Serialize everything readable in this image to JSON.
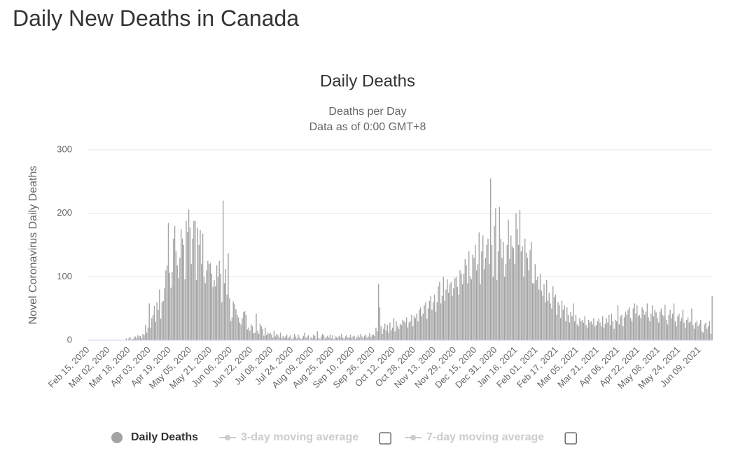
{
  "header": {
    "title": "Daily New Deaths in Canada"
  },
  "chart_data": {
    "type": "bar",
    "title": "Daily Deaths",
    "subtitle": [
      "Deaths per Day",
      "Data as of 0:00 GMT+8"
    ],
    "y_label": "Novel Coronavirus Daily Deaths",
    "ylim": [
      0,
      300
    ],
    "yticks": [
      0,
      100,
      200,
      300
    ],
    "grid": true,
    "categories": [
      "Feb 15, 2020",
      null,
      null,
      null,
      null,
      null,
      null,
      null,
      null,
      null,
      null,
      null,
      null,
      null,
      null,
      null,
      "Mar 02, 2020",
      null,
      null,
      null,
      null,
      null,
      null,
      null,
      null,
      null,
      null,
      null,
      null,
      null,
      null,
      null,
      "Mar 18, 2020",
      null,
      null,
      null,
      null,
      null,
      null,
      null,
      null,
      null,
      null,
      null,
      null,
      null,
      null,
      null,
      "Apr 03, 2020",
      null,
      null,
      null,
      null,
      null,
      null,
      null,
      null,
      null,
      null,
      null,
      null,
      null,
      null,
      null,
      "Apr 19, 2020",
      null,
      null,
      null,
      null,
      null,
      null,
      null,
      null,
      null,
      null,
      null,
      null,
      null,
      null,
      null,
      "May 05, 2020",
      null,
      null,
      null,
      null,
      null,
      null,
      null,
      null,
      null,
      null,
      null,
      null,
      null,
      null,
      null,
      "May 21, 2020",
      null,
      null,
      null,
      null,
      null,
      null,
      null,
      null,
      null,
      null,
      null,
      null,
      null,
      null,
      null,
      "Jun 06, 2020",
      null,
      null,
      null,
      null,
      null,
      null,
      null,
      null,
      null,
      null,
      null,
      null,
      null,
      null,
      null,
      "Jun 22, 2020",
      null,
      null,
      null,
      null,
      null,
      null,
      null,
      null,
      null,
      null,
      null,
      null,
      null,
      null,
      null,
      "Jul 08, 2020",
      null,
      null,
      null,
      null,
      null,
      null,
      null,
      null,
      null,
      null,
      null,
      null,
      null,
      null,
      null,
      "Jul 24, 2020",
      null,
      null,
      null,
      null,
      null,
      null,
      null,
      null,
      null,
      null,
      null,
      null,
      null,
      null,
      null,
      "Aug 09, 2020",
      null,
      null,
      null,
      null,
      null,
      null,
      null,
      null,
      null,
      null,
      null,
      null,
      null,
      null,
      null,
      "Aug 25, 2020",
      null,
      null,
      null,
      null,
      null,
      null,
      null,
      null,
      null,
      null,
      null,
      null,
      null,
      null,
      null,
      "Sep 10, 2020",
      null,
      null,
      null,
      null,
      null,
      null,
      null,
      null,
      null,
      null,
      null,
      null,
      null,
      null,
      null,
      "Sep 26, 2020",
      null,
      null,
      null,
      null,
      null,
      null,
      null,
      null,
      null,
      null,
      null,
      null,
      null,
      null,
      null,
      "Oct 12, 2020",
      null,
      null,
      null,
      null,
      null,
      null,
      null,
      null,
      null,
      null,
      null,
      null,
      null,
      null,
      null,
      "Oct 28, 2020",
      null,
      null,
      null,
      null,
      null,
      null,
      null,
      null,
      null,
      null,
      null,
      null,
      null,
      null,
      null,
      "Nov 13, 2020",
      null,
      null,
      null,
      null,
      null,
      null,
      null,
      null,
      null,
      null,
      null,
      null,
      null,
      null,
      null,
      "Nov 29, 2020",
      null,
      null,
      null,
      null,
      null,
      null,
      null,
      null,
      null,
      null,
      null,
      null,
      null,
      null,
      null,
      "Dec 15, 2020",
      null,
      null,
      null,
      null,
      null,
      null,
      null,
      null,
      null,
      null,
      null,
      null,
      null,
      null,
      null,
      "Dec 31, 2020",
      null,
      null,
      null,
      null,
      null,
      null,
      null,
      null,
      null,
      null,
      null,
      null,
      null,
      null,
      null,
      "Jan 16, 2021",
      null,
      null,
      null,
      null,
      null,
      null,
      null,
      null,
      null,
      null,
      null,
      null,
      null,
      null,
      null,
      "Feb 01, 2021",
      null,
      null,
      null,
      null,
      null,
      null,
      null,
      null,
      null,
      null,
      null,
      null,
      null,
      null,
      null,
      "Feb 17, 2021",
      null,
      null,
      null,
      null,
      null,
      null,
      null,
      null,
      null,
      null,
      null,
      null,
      null,
      null,
      null,
      "Mar 05, 2021",
      null,
      null,
      null,
      null,
      null,
      null,
      null,
      null,
      null,
      null,
      null,
      null,
      null,
      null,
      null,
      "Mar 21, 2021",
      null,
      null,
      null,
      null,
      null,
      null,
      null,
      null,
      null,
      null,
      null,
      null,
      null,
      null,
      null,
      "Apr 06, 2021",
      null,
      null,
      null,
      null,
      null,
      null,
      null,
      null,
      null,
      null,
      null,
      null,
      null,
      null,
      null,
      "Apr 22, 2021",
      null,
      null,
      null,
      null,
      null,
      null,
      null,
      null,
      null,
      null,
      null,
      null,
      null,
      null,
      null,
      "May 08, 2021",
      null,
      null,
      null,
      null,
      null,
      null,
      null,
      null,
      null,
      null,
      null,
      null,
      null,
      null,
      null,
      "May 24, 2021",
      null,
      null,
      null,
      null,
      null,
      null,
      null,
      null,
      null,
      null,
      null,
      null,
      null,
      null,
      null,
      "Jun 09, 2021",
      null,
      null,
      null,
      null,
      null,
      null,
      null,
      null,
      null,
      null
    ],
    "series": [
      {
        "name": "Daily Deaths",
        "color": "#a3a3a3",
        "values": [
          0,
          0,
          0,
          0,
          0,
          0,
          0,
          0,
          0,
          0,
          0,
          0,
          0,
          0,
          0,
          0,
          0,
          0,
          0,
          0,
          0,
          0,
          0,
          1,
          0,
          0,
          0,
          0,
          0,
          1,
          3,
          0,
          3,
          5,
          1,
          2,
          4,
          6,
          3,
          8,
          6,
          7,
          3,
          10,
          8,
          24,
          12,
          20,
          58,
          20,
          35,
          40,
          54,
          29,
          60,
          48,
          80,
          34,
          60,
          62,
          82,
          110,
          118,
          185,
          106,
          83,
          108,
          160,
          180,
          140,
          118,
          98,
          130,
          175,
          160,
          150,
          96,
          188,
          171,
          206,
          178,
          120,
          160,
          188,
          188,
          95,
          177,
          150,
          174,
          120,
          168,
          100,
          90,
          110,
          125,
          120,
          122,
          105,
          84,
          95,
          85,
          118,
          100,
          125,
          105,
          60,
          220,
          90,
          112,
          72,
          137,
          66,
          30,
          36,
          61,
          57,
          49,
          40,
          36,
          28,
          25,
          35,
          44,
          46,
          40,
          17,
          20,
          15,
          25,
          22,
          11,
          12,
          42,
          15,
          10,
          26,
          22,
          18,
          7,
          20,
          8,
          12,
          10,
          12,
          9,
          4,
          15,
          6,
          10,
          8,
          5,
          12,
          3,
          7,
          4,
          6,
          9,
          3,
          5,
          8,
          2,
          4,
          10,
          6,
          3,
          9,
          5,
          2,
          3,
          7,
          12,
          4,
          6,
          8,
          1,
          5,
          3,
          9,
          7,
          2,
          14,
          4,
          2,
          6,
          10,
          8,
          3,
          5,
          7,
          4,
          9,
          3,
          8,
          2,
          6,
          5,
          3,
          7,
          5,
          10,
          4,
          2,
          6,
          8,
          4,
          5,
          9,
          3,
          6,
          7,
          2,
          5,
          8,
          4,
          10,
          6,
          3,
          7,
          9,
          4,
          6,
          11,
          5,
          8,
          9,
          7,
          20,
          14,
          89,
          52,
          22,
          10,
          18,
          26,
          15,
          24,
          12,
          28,
          16,
          20,
          35,
          14,
          30,
          22,
          18,
          26,
          24,
          32,
          30,
          28,
          36,
          20,
          28,
          30,
          40,
          22,
          38,
          35,
          42,
          30,
          48,
          52,
          38,
          42,
          55,
          60,
          34,
          50,
          62,
          70,
          48,
          60,
          72,
          45,
          60,
          85,
          92,
          58,
          70,
          100,
          62,
          80,
          96,
          75,
          88,
          92,
          70,
          82,
          98,
          100,
          84,
          72,
          110,
          105,
          88,
          105,
          128,
          118,
          90,
          140,
          100,
          96,
          135,
          130,
          150,
          110,
          120,
          170,
          88,
          140,
          165,
          112,
          130,
          150,
          160,
          120,
          255,
          150,
          100,
          180,
          208,
          95,
          140,
          210,
          160,
          130,
          155,
          100,
          120,
          150,
          190,
          128,
          165,
          148,
          145,
          120,
          200,
          175,
          150,
          205,
          140,
          148,
          100,
          160,
          138,
          130,
          110,
          142,
          155,
          90,
          90,
          120,
          95,
          100,
          80,
          105,
          78,
          70,
          88,
          60,
          95,
          62,
          75,
          58,
          50,
          85,
          68,
          72,
          40,
          60,
          55,
          35,
          62,
          48,
          55,
          30,
          52,
          40,
          28,
          45,
          38,
          58,
          30,
          40,
          25,
          22,
          35,
          30,
          32,
          28,
          38,
          24,
          20,
          32,
          28,
          30,
          25,
          35,
          22,
          24,
          30,
          34,
          28,
          22,
          38,
          20,
          26,
          35,
          28,
          40,
          24,
          42,
          30,
          18,
          32,
          30,
          55,
          25,
          38,
          40,
          22,
          36,
          45,
          40,
          48,
          52,
          35,
          30,
          50,
          58,
          42,
          55,
          38,
          40,
          35,
          52,
          48,
          40,
          45,
          58,
          36,
          30,
          42,
          55,
          38,
          48,
          44,
          35,
          28,
          45,
          50,
          40,
          38,
          56,
          32,
          25,
          40,
          48,
          35,
          42,
          58,
          30,
          22,
          38,
          42,
          30,
          35,
          48,
          28,
          20,
          32,
          36,
          28,
          30,
          50,
          24,
          18,
          28,
          30,
          22,
          26,
          32,
          14,
          12,
          25,
          28,
          18,
          22,
          30,
          10,
          70
        ]
      }
    ],
    "inactive_series": [
      {
        "name": "3-day moving average",
        "color": "#cccccc"
      },
      {
        "name": "7-day moving average",
        "color": "#cccccc"
      }
    ]
  }
}
